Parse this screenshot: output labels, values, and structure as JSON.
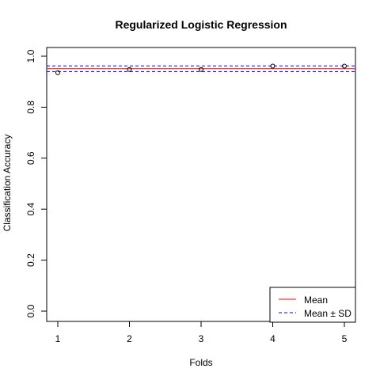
{
  "chart_data": {
    "type": "scatter",
    "title": "Regularized Logistic Regression",
    "xlabel": "Folds",
    "ylabel": "Classification Accuracy",
    "x": [
      1,
      2,
      3,
      4,
      5
    ],
    "y": [
      0.935,
      0.948,
      0.948,
      0.961,
      0.961
    ],
    "mean": 0.951,
    "sd": 0.011,
    "xlim": [
      1,
      5
    ],
    "ylim": [
      0,
      1
    ],
    "x_ticks": [
      "1",
      "2",
      "3",
      "4",
      "5"
    ],
    "y_ticks": [
      "0.0",
      "0.2",
      "0.4",
      "0.6",
      "0.8",
      "1.0"
    ],
    "grid": false,
    "legend": {
      "position": "bottom-right",
      "entries": [
        {
          "label": "Mean",
          "color": "#ff0000",
          "style": "solid"
        },
        {
          "label": "Mean ± SD",
          "color": "#0000ff",
          "style": "dashed"
        }
      ]
    }
  }
}
